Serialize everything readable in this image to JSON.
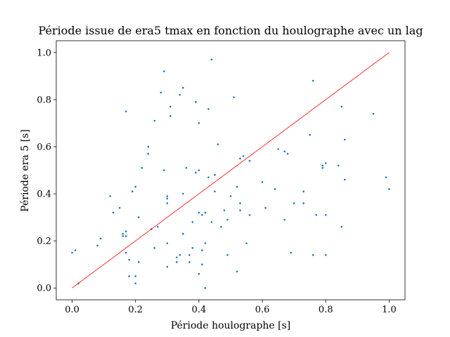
{
  "chart_data": {
    "type": "scatter",
    "title": "Période issue de era5 tmax en fonction du houlographe avec un lag",
    "xlabel": "Période houlographe [s]",
    "ylabel": "Période era 5 [s]",
    "xlim": [
      -0.05,
      1.05
    ],
    "ylim": [
      -0.05,
      1.05
    ],
    "xticks": [
      "0.0",
      "0.2",
      "0.4",
      "0.6",
      "0.8",
      "1.0"
    ],
    "yticks": [
      "0.0",
      "0.2",
      "0.4",
      "0.6",
      "0.8",
      "1.0"
    ],
    "grid": false,
    "legend": "none",
    "series": [
      {
        "kind": "scatter",
        "color": "#1f77b4",
        "points": [
          [
            0.0,
            0.15
          ],
          [
            0.01,
            0.16
          ],
          [
            0.02,
            0.02
          ],
          [
            0.08,
            0.18
          ],
          [
            0.09,
            0.21
          ],
          [
            0.12,
            0.39
          ],
          [
            0.13,
            0.32
          ],
          [
            0.15,
            0.34
          ],
          [
            0.16,
            0.23
          ],
          [
            0.16,
            0.22
          ],
          [
            0.17,
            0.24
          ],
          [
            0.17,
            0.22
          ],
          [
            0.17,
            0.15
          ],
          [
            0.18,
            0.12
          ],
          [
            0.18,
            0.05
          ],
          [
            0.17,
            0.75
          ],
          [
            0.19,
            0.41
          ],
          [
            0.2,
            0.43
          ],
          [
            0.21,
            0.11
          ],
          [
            0.21,
            0.3
          ],
          [
            0.2,
            0.05
          ],
          [
            0.2,
            0.02
          ],
          [
            0.22,
            0.51
          ],
          [
            0.24,
            0.57
          ],
          [
            0.24,
            0.6
          ],
          [
            0.26,
            0.71
          ],
          [
            0.25,
            0.25
          ],
          [
            0.26,
            0.17
          ],
          [
            0.27,
            0.26
          ],
          [
            0.28,
            0.83
          ],
          [
            0.29,
            0.92
          ],
          [
            0.29,
            0.5
          ],
          [
            0.3,
            0.39
          ],
          [
            0.3,
            0.38
          ],
          [
            0.3,
            0.36
          ],
          [
            0.3,
            0.09
          ],
          [
            0.3,
            0.19
          ],
          [
            0.31,
            0.77
          ],
          [
            0.31,
            0.73
          ],
          [
            0.33,
            0.13
          ],
          [
            0.33,
            0.11
          ],
          [
            0.34,
            0.14
          ],
          [
            0.34,
            0.82
          ],
          [
            0.35,
            0.85
          ],
          [
            0.35,
            0.4
          ],
          [
            0.35,
            0.23
          ],
          [
            0.36,
            0.51
          ],
          [
            0.37,
            0.11
          ],
          [
            0.37,
            0.14
          ],
          [
            0.38,
            0.17
          ],
          [
            0.38,
            0.28
          ],
          [
            0.39,
            0.49
          ],
          [
            0.39,
            0.79
          ],
          [
            0.4,
            0.7
          ],
          [
            0.4,
            0.5
          ],
          [
            0.4,
            0.32
          ],
          [
            0.4,
            0.06
          ],
          [
            0.41,
            0.16
          ],
          [
            0.41,
            0.31
          ],
          [
            0.41,
            0.1
          ],
          [
            0.42,
            0.32
          ],
          [
            0.42,
            0.19
          ],
          [
            0.42,
            0.0
          ],
          [
            0.43,
            0.47
          ],
          [
            0.43,
            0.76
          ],
          [
            0.44,
            0.97
          ],
          [
            0.44,
            0.28
          ],
          [
            0.45,
            0.41
          ],
          [
            0.45,
            0.48
          ],
          [
            0.46,
            0.61
          ],
          [
            0.47,
            0.26
          ],
          [
            0.48,
            0.33
          ],
          [
            0.49,
            0.29
          ],
          [
            0.49,
            0.14
          ],
          [
            0.5,
            0.39
          ],
          [
            0.51,
            0.81
          ],
          [
            0.52,
            0.43
          ],
          [
            0.52,
            0.07
          ],
          [
            0.53,
            0.55
          ],
          [
            0.53,
            0.33
          ],
          [
            0.53,
            0.36
          ],
          [
            0.54,
            0.56
          ],
          [
            0.55,
            0.19
          ],
          [
            0.56,
            0.54
          ],
          [
            0.56,
            0.31
          ],
          [
            0.6,
            0.45
          ],
          [
            0.61,
            0.34
          ],
          [
            0.64,
            0.42
          ],
          [
            0.65,
            0.59
          ],
          [
            0.67,
            0.58
          ],
          [
            0.67,
            0.29
          ],
          [
            0.68,
            0.57
          ],
          [
            0.69,
            0.15
          ],
          [
            0.7,
            0.36
          ],
          [
            0.73,
            0.41
          ],
          [
            0.73,
            0.36
          ],
          [
            0.75,
            0.65
          ],
          [
            0.76,
            0.88
          ],
          [
            0.76,
            0.14
          ],
          [
            0.77,
            0.31
          ],
          [
            0.79,
            0.52
          ],
          [
            0.79,
            0.51
          ],
          [
            0.8,
            0.31
          ],
          [
            0.8,
            0.53
          ],
          [
            0.8,
            0.14
          ],
          [
            0.84,
            0.52
          ],
          [
            0.85,
            0.77
          ],
          [
            0.85,
            0.26
          ],
          [
            0.86,
            0.63
          ],
          [
            0.86,
            0.46
          ],
          [
            0.95,
            0.74
          ],
          [
            0.99,
            0.47
          ],
          [
            1.0,
            0.42
          ]
        ]
      },
      {
        "kind": "line",
        "color": "#ff0000",
        "x": [
          0.0,
          1.0
        ],
        "y": [
          0.0,
          1.0
        ]
      }
    ]
  }
}
